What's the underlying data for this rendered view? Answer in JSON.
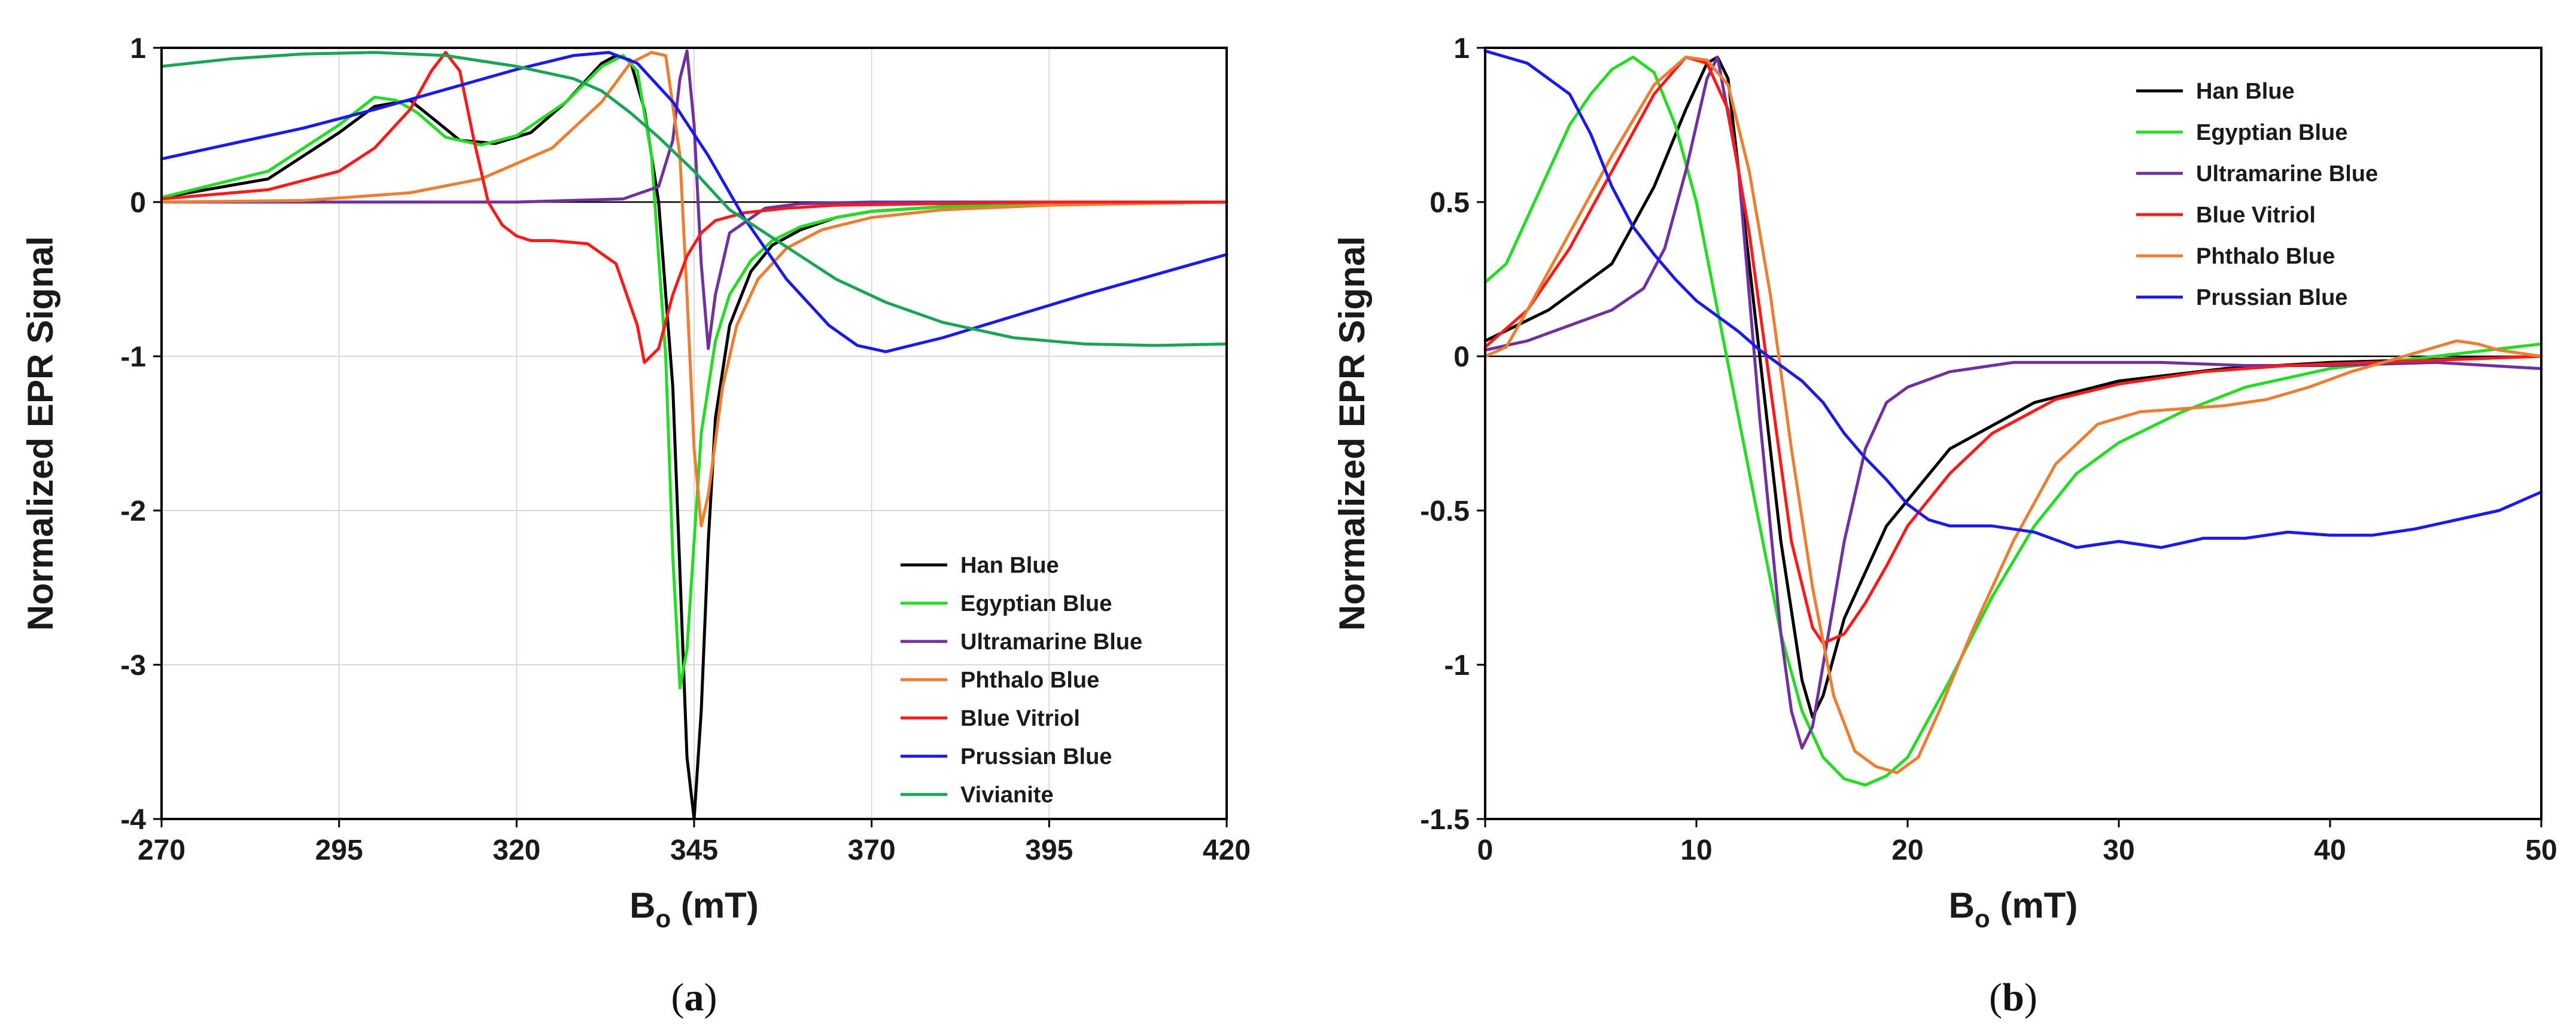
{
  "chart_data": [
    {
      "id": "a",
      "type": "line",
      "panel_label": "a",
      "xlabel": "B",
      "xlabel_sub": "o",
      "xlabel_unit": "(mT)",
      "ylabel": "Normalized EPR Signal",
      "xlim": [
        270,
        420
      ],
      "ylim": [
        -4,
        1
      ],
      "xticks": [
        270,
        295,
        320,
        345,
        370,
        395,
        420
      ],
      "yticks": [
        -4,
        -3,
        -2,
        -1,
        0,
        1
      ],
      "grid": true,
      "zero_line": true,
      "legend": "bottom-right",
      "series": [
        {
          "name": "Han Blue",
          "color": "#000000",
          "x": [
            270,
            285,
            295,
            300,
            305,
            308,
            312,
            317,
            322,
            327,
            332,
            334,
            336,
            338,
            340,
            342,
            343,
            344,
            345,
            346,
            347,
            348,
            350,
            353,
            356,
            360,
            365,
            370,
            380,
            395,
            420
          ],
          "y": [
            0.03,
            0.15,
            0.45,
            0.62,
            0.66,
            0.55,
            0.4,
            0.38,
            0.45,
            0.65,
            0.9,
            0.95,
            0.92,
            0.6,
            0.0,
            -1.2,
            -2.4,
            -3.6,
            -4.0,
            -3.3,
            -2.2,
            -1.4,
            -0.8,
            -0.45,
            -0.28,
            -0.18,
            -0.1,
            -0.06,
            -0.03,
            -0.01,
            0.0
          ]
        },
        {
          "name": "Egyptian Blue",
          "color": "#22dd22",
          "x": [
            270,
            285,
            295,
            300,
            303,
            306,
            310,
            315,
            320,
            327,
            332,
            335,
            337,
            339,
            341,
            342,
            343,
            344,
            345,
            346,
            348,
            350,
            353,
            356,
            360,
            365,
            370,
            380,
            395,
            420
          ],
          "y": [
            0.03,
            0.2,
            0.5,
            0.68,
            0.66,
            0.58,
            0.42,
            0.37,
            0.43,
            0.65,
            0.88,
            0.95,
            0.85,
            0.3,
            -1.0,
            -2.3,
            -3.15,
            -2.9,
            -2.2,
            -1.5,
            -0.9,
            -0.6,
            -0.38,
            -0.25,
            -0.16,
            -0.1,
            -0.06,
            -0.03,
            -0.01,
            0.0
          ]
        },
        {
          "name": "Ultramarine Blue",
          "color": "#7030a0",
          "x": [
            270,
            320,
            335,
            340,
            342,
            343,
            344,
            345,
            346,
            347,
            348,
            350,
            355,
            360,
            370,
            395,
            420
          ],
          "y": [
            0.0,
            0.0,
            0.02,
            0.1,
            0.4,
            0.8,
            0.98,
            0.5,
            -0.4,
            -0.95,
            -0.6,
            -0.2,
            -0.04,
            -0.01,
            0.0,
            0.0,
            0.0
          ],
          "note": "visible peak at ~344 mT"
        },
        {
          "name": "Phthalo Blue",
          "color": "#ed7d31",
          "x": [
            270,
            290,
            305,
            315,
            325,
            332,
            336,
            339,
            341,
            343,
            344,
            345,
            346,
            347,
            349,
            351,
            354,
            358,
            363,
            370,
            380,
            395,
            420
          ],
          "y": [
            0.0,
            0.01,
            0.06,
            0.15,
            0.35,
            0.65,
            0.9,
            0.97,
            0.95,
            0.3,
            -0.6,
            -1.6,
            -2.1,
            -1.9,
            -1.2,
            -0.8,
            -0.5,
            -0.3,
            -0.18,
            -0.1,
            -0.05,
            -0.02,
            0.0
          ]
        },
        {
          "name": "Blue Vitriol",
          "color": "#ff1a1a",
          "x": [
            270,
            285,
            295,
            300,
            305,
            308,
            310,
            312,
            314,
            316,
            318,
            320,
            322,
            325,
            330,
            334,
            337,
            338,
            340,
            342,
            344,
            346,
            348,
            352,
            358,
            365,
            380,
            395,
            420
          ],
          "y": [
            0.02,
            0.08,
            0.2,
            0.35,
            0.6,
            0.85,
            0.97,
            0.85,
            0.4,
            0.0,
            -0.15,
            -0.22,
            -0.25,
            -0.25,
            -0.27,
            -0.4,
            -0.8,
            -1.04,
            -0.95,
            -0.6,
            -0.35,
            -0.2,
            -0.12,
            -0.07,
            -0.04,
            -0.02,
            -0.01,
            0.0,
            0.0
          ]
        },
        {
          "name": "Prussian Blue",
          "color": "#1a1aee",
          "x": [
            270,
            280,
            290,
            300,
            310,
            320,
            328,
            333,
            337,
            342,
            347,
            352,
            358,
            364,
            368,
            372,
            380,
            390,
            400,
            410,
            420
          ],
          "y": [
            0.28,
            0.38,
            0.48,
            0.6,
            0.73,
            0.86,
            0.95,
            0.97,
            0.9,
            0.65,
            0.3,
            -0.1,
            -0.5,
            -0.8,
            -0.93,
            -0.97,
            -0.88,
            -0.74,
            -0.6,
            -0.47,
            -0.34
          ]
        }
      ],
      "legend_extra": [
        {
          "name": "Vivianite",
          "color": "#1aa555",
          "x": [
            270,
            280,
            290,
            300,
            310,
            320,
            328,
            332,
            336,
            340,
            345,
            350,
            355,
            360,
            365,
            372,
            380,
            390,
            400,
            410,
            420
          ],
          "y": [
            0.88,
            0.93,
            0.96,
            0.97,
            0.95,
            0.88,
            0.8,
            0.72,
            0.58,
            0.42,
            0.2,
            -0.05,
            -0.2,
            -0.35,
            -0.5,
            -0.65,
            -0.78,
            -0.88,
            -0.92,
            -0.93,
            -0.92
          ]
        }
      ]
    },
    {
      "id": "b",
      "type": "line",
      "panel_label": "b",
      "xlabel": "B",
      "xlabel_sub": "o",
      "xlabel_unit": "(mT)",
      "ylabel": "Normalized EPR Signal",
      "xlim": [
        0,
        50
      ],
      "ylim": [
        -1.5,
        1
      ],
      "xticks": [
        0,
        10,
        20,
        30,
        40,
        50
      ],
      "yticks": [
        -1.5,
        -1,
        -0.5,
        0,
        0.5,
        1
      ],
      "ytick_labels": [
        "-1.5",
        "-1",
        "-0.5",
        "0",
        "0.5",
        "1"
      ],
      "grid": false,
      "zero_line": true,
      "legend": "top-right",
      "series": [
        {
          "name": "Han Blue",
          "color": "#000000",
          "x": [
            0,
            3,
            6,
            8,
            9.5,
            10.5,
            11,
            11.5,
            12,
            13,
            14,
            15,
            15.5,
            16,
            17,
            19,
            22,
            26,
            30,
            35,
            40,
            45,
            50
          ],
          "y": [
            0.05,
            0.15,
            0.3,
            0.55,
            0.8,
            0.95,
            0.97,
            0.9,
            0.6,
            0.0,
            -0.6,
            -1.05,
            -1.17,
            -1.1,
            -0.85,
            -0.55,
            -0.3,
            -0.15,
            -0.08,
            -0.04,
            -0.02,
            -0.01,
            0.0
          ]
        },
        {
          "name": "Egyptian Blue",
          "color": "#22dd22",
          "x": [
            0,
            1,
            2,
            3,
            4,
            5,
            6,
            7,
            8,
            9,
            10,
            11,
            12,
            13,
            14,
            15,
            16,
            17,
            18,
            19,
            20,
            22,
            24,
            26,
            28,
            30,
            33,
            36,
            40,
            45,
            50
          ],
          "y": [
            0.24,
            0.3,
            0.45,
            0.6,
            0.75,
            0.85,
            0.93,
            0.97,
            0.92,
            0.75,
            0.5,
            0.15,
            -0.2,
            -0.55,
            -0.9,
            -1.15,
            -1.3,
            -1.37,
            -1.39,
            -1.36,
            -1.3,
            -1.05,
            -0.78,
            -0.55,
            -0.38,
            -0.28,
            -0.18,
            -0.1,
            -0.04,
            0.0,
            0.04
          ]
        },
        {
          "name": "Ultramarine Blue",
          "color": "#7030a0",
          "x": [
            0,
            2,
            4,
            6,
            7.5,
            8.5,
            9.5,
            10.5,
            11,
            12,
            13,
            14,
            14.5,
            15,
            15.5,
            16,
            17,
            18,
            19,
            20,
            22,
            25,
            28,
            32,
            36,
            40,
            45,
            50
          ],
          "y": [
            0.02,
            0.05,
            0.1,
            0.15,
            0.22,
            0.35,
            0.6,
            0.9,
            0.97,
            0.6,
            -0.2,
            -0.9,
            -1.15,
            -1.27,
            -1.2,
            -1.0,
            -0.6,
            -0.3,
            -0.15,
            -0.1,
            -0.05,
            -0.02,
            -0.02,
            -0.02,
            -0.03,
            -0.03,
            -0.02,
            -0.04
          ]
        },
        {
          "name": "Blue Vitriol",
          "color": "#ff1a1a",
          "x": [
            0,
            2,
            4,
            6,
            8,
            9.5,
            10.5,
            11.5,
            12.5,
            13.5,
            14.5,
            15.5,
            16,
            17,
            18,
            19,
            20,
            22,
            24,
            27,
            30,
            34,
            38,
            42,
            46,
            50
          ],
          "y": [
            0.03,
            0.15,
            0.35,
            0.6,
            0.85,
            0.97,
            0.95,
            0.8,
            0.4,
            -0.1,
            -0.6,
            -0.88,
            -0.93,
            -0.9,
            -0.8,
            -0.68,
            -0.55,
            -0.38,
            -0.25,
            -0.14,
            -0.09,
            -0.05,
            -0.03,
            -0.02,
            -0.01,
            0.0
          ]
        },
        {
          "name": "Phthalo Blue",
          "color": "#ed7d31",
          "x": [
            0,
            1,
            2,
            4,
            6,
            8,
            9.5,
            10.5,
            11.5,
            12.5,
            13.5,
            14.5,
            15.5,
            16.5,
            17.5,
            18.5,
            19.5,
            20.5,
            21.5,
            23,
            25,
            27,
            29,
            31,
            33,
            35,
            37,
            39,
            41,
            43,
            45,
            46,
            47,
            48,
            49,
            50
          ],
          "y": [
            0.0,
            0.03,
            0.15,
            0.4,
            0.65,
            0.88,
            0.97,
            0.96,
            0.88,
            0.6,
            0.2,
            -0.3,
            -0.75,
            -1.1,
            -1.28,
            -1.33,
            -1.35,
            -1.3,
            -1.15,
            -0.9,
            -0.6,
            -0.35,
            -0.22,
            -0.18,
            -0.17,
            -0.16,
            -0.14,
            -0.1,
            -0.05,
            -0.01,
            0.03,
            0.05,
            0.04,
            0.02,
            0.01,
            0.0
          ]
        },
        {
          "name": "Prussian Blue",
          "color": "#1a1aee",
          "x": [
            0,
            1,
            2,
            3,
            4,
            5,
            6,
            7,
            8,
            9,
            10,
            11,
            12,
            13,
            14,
            15,
            16,
            17,
            18,
            19,
            20,
            21,
            22,
            24,
            26,
            28,
            30,
            32,
            34,
            36,
            38,
            40,
            42,
            44,
            46,
            48,
            50
          ],
          "y": [
            0.99,
            0.97,
            0.95,
            0.9,
            0.85,
            0.72,
            0.55,
            0.42,
            0.33,
            0.25,
            0.18,
            0.13,
            0.08,
            0.02,
            -0.03,
            -0.08,
            -0.15,
            -0.25,
            -0.33,
            -0.4,
            -0.48,
            -0.53,
            -0.55,
            -0.55,
            -0.57,
            -0.62,
            -0.6,
            -0.62,
            -0.59,
            -0.59,
            -0.57,
            -0.58,
            -0.58,
            -0.56,
            -0.53,
            -0.5,
            -0.44
          ]
        }
      ]
    }
  ]
}
